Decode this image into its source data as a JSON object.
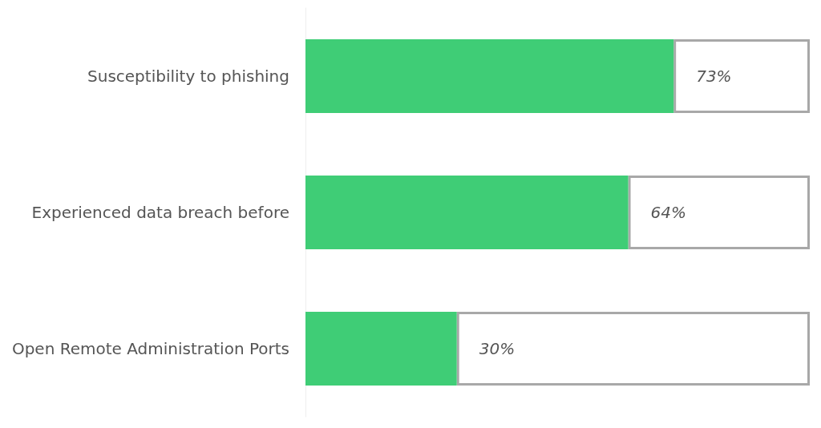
{
  "chart_data": {
    "type": "bar",
    "orientation": "horizontal",
    "stacked": true,
    "categories": [
      "Susceptibility to phishing",
      "Experienced data breach before",
      "Open Remote Administration Ports"
    ],
    "xlim": [
      0,
      100
    ],
    "series": [
      {
        "color": "#3fcd76",
        "values": [
          73,
          64,
          30
        ],
        "value_labels": [
          "73%",
          "64%",
          "30%"
        ]
      },
      {
        "color": "#ffffff",
        "values": [
          27,
          36,
          70
        ]
      }
    ],
    "grid": false,
    "tick_labels": "y"
  }
}
